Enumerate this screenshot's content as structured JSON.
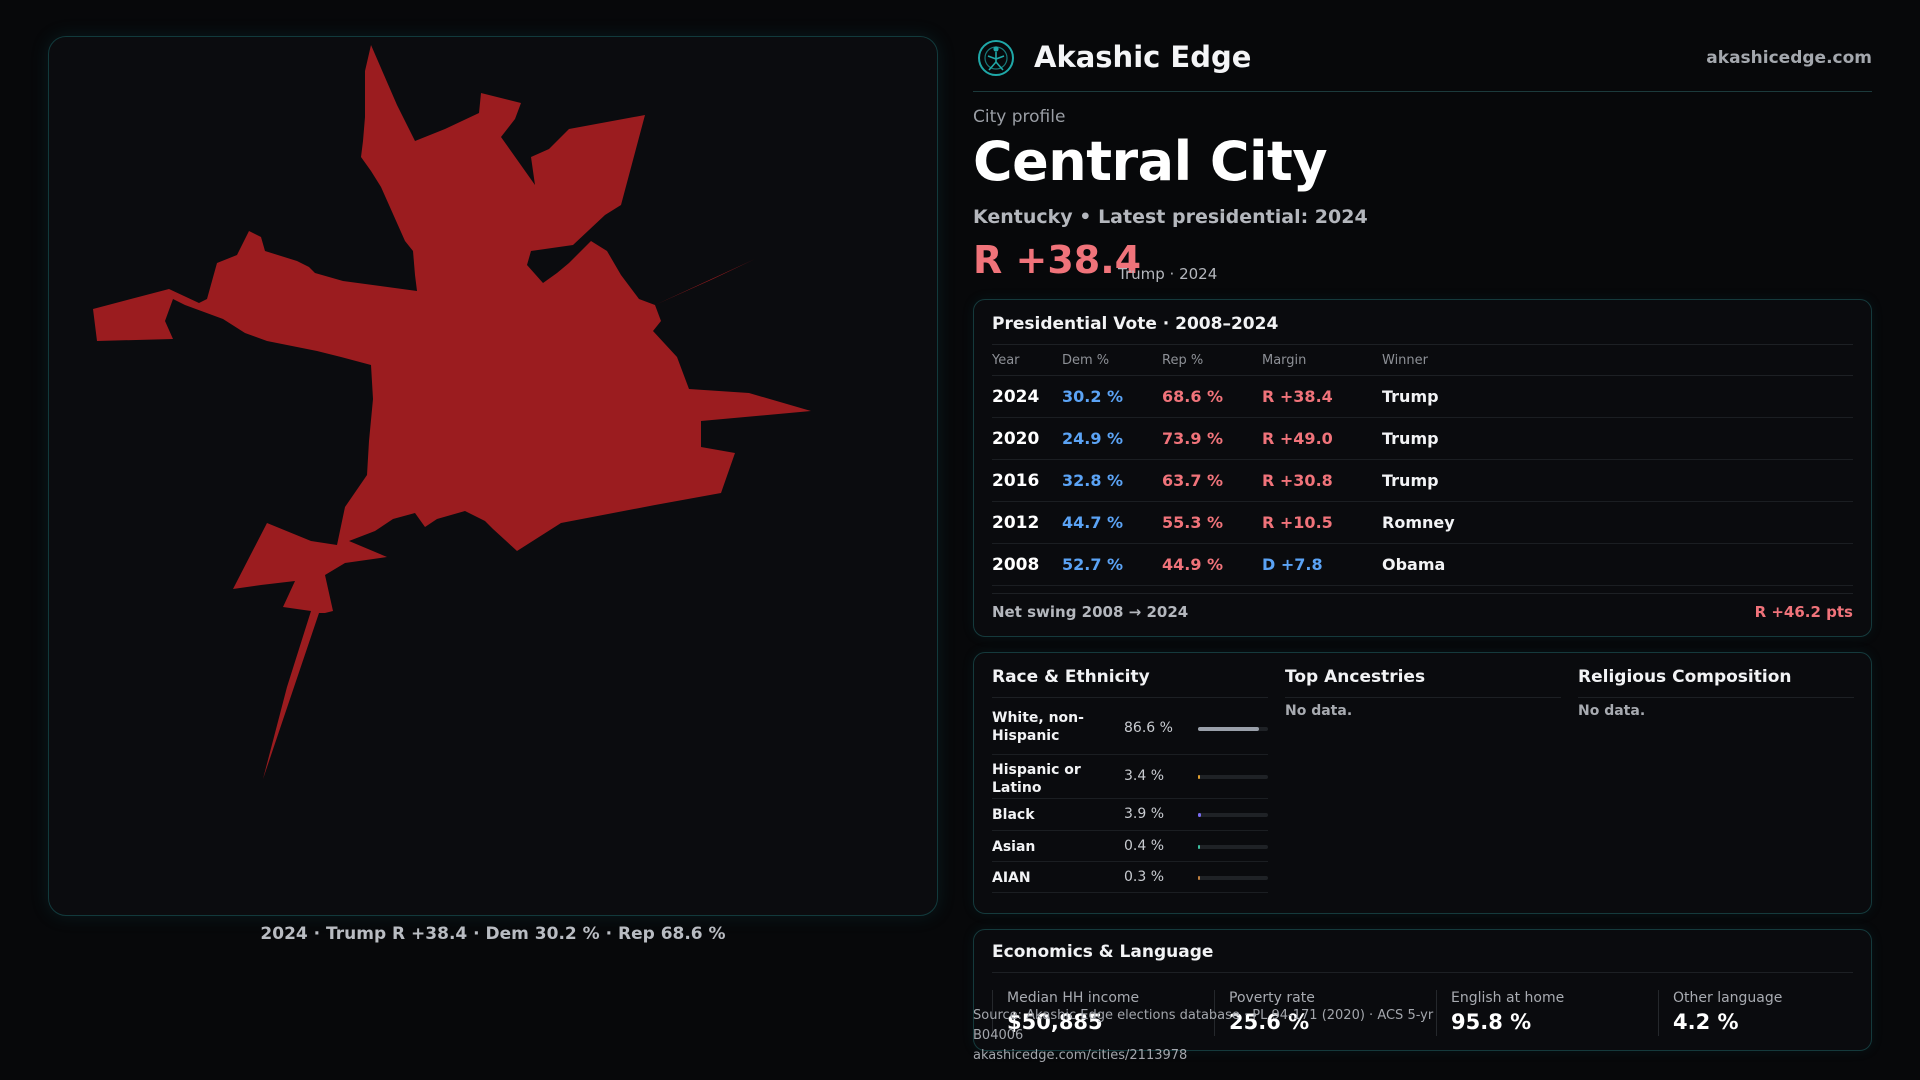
{
  "brand": {
    "name": "Akashic Edge",
    "site": "akashicedge.com"
  },
  "profile": {
    "eyebrow": "City profile",
    "title": "Central City",
    "subtitle": "Kentucky • Latest presidential: 2024",
    "margin": "R +38.4",
    "margin_note": "Trump · 2024"
  },
  "map": {
    "caption": "2024 · Trump R +38.4 · Dem 30.2 % · Rep 68.6 %",
    "fill_color": "#9b1c1f"
  },
  "vote": {
    "title": "Presidential Vote · 2008–2024",
    "headers": {
      "year": "Year",
      "dem": "Dem %",
      "rep": "Rep %",
      "margin": "Margin",
      "winner": "Winner"
    },
    "rows": [
      {
        "year": "2024",
        "dem": "30.2 %",
        "rep": "68.6 %",
        "margin": "R +38.4",
        "party": "R",
        "winner": "Trump"
      },
      {
        "year": "2020",
        "dem": "24.9 %",
        "rep": "73.9 %",
        "margin": "R +49.0",
        "party": "R",
        "winner": "Trump"
      },
      {
        "year": "2016",
        "dem": "32.8 %",
        "rep": "63.7 %",
        "margin": "R +30.8",
        "party": "R",
        "winner": "Trump"
      },
      {
        "year": "2012",
        "dem": "44.7 %",
        "rep": "55.3 %",
        "margin": "R +10.5",
        "party": "R",
        "winner": "Romney"
      },
      {
        "year": "2008",
        "dem": "52.7 %",
        "rep": "44.9 %",
        "margin": "D +7.8",
        "party": "D",
        "winner": "Obama"
      }
    ],
    "swing_label": "Net swing 2008 → 2024",
    "swing_value": "R +46.2 pts"
  },
  "race": {
    "title": "Race & Ethnicity",
    "rows": [
      {
        "name": "White, non-Hispanic",
        "pct": "86.6 %",
        "share": 0.866,
        "color": "#9aa0aa"
      },
      {
        "name": "Hispanic or Latino",
        "pct": "3.4 %",
        "share": 0.034,
        "color": "#e0a030"
      },
      {
        "name": "Black",
        "pct": "3.9 %",
        "share": 0.039,
        "color": "#7a6cf0"
      },
      {
        "name": "Asian",
        "pct": "0.4 %",
        "share": 0.004,
        "color": "#3cc0a0"
      },
      {
        "name": "AIAN",
        "pct": "0.3 %",
        "share": 0.003,
        "color": "#c08040"
      }
    ]
  },
  "ancestry": {
    "title": "Top Ancestries",
    "nodata": "No data."
  },
  "religion": {
    "title": "Religious Composition",
    "nodata": "No data."
  },
  "econ": {
    "title": "Economics & Language",
    "stats": [
      {
        "label": "Median HH income",
        "value": "$50,885"
      },
      {
        "label": "Poverty rate",
        "value": "25.6 %"
      },
      {
        "label": "English at home",
        "value": "95.8 %"
      },
      {
        "label": "Other language",
        "value": "4.2 %"
      }
    ]
  },
  "source": {
    "line1": "Source: Akashic Edge elections database · PL 94-171 (2020) · ACS 5-yr B04006",
    "line2": "akashicedge.com/cities/2113978"
  },
  "colors": {
    "dem": "#5ba3f5",
    "rep": "#f0737a",
    "accent": "#1fa8a8"
  }
}
